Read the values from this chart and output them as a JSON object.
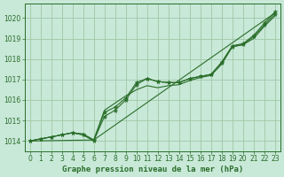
{
  "title": "Graphe pression niveau de la mer (hPa)",
  "background_color": "#c8e8d8",
  "grid_color": "#a0c8a8",
  "line_color": "#2a6e2a",
  "xlim": [
    -0.5,
    23.5
  ],
  "ylim": [
    1013.5,
    1020.7
  ],
  "yticks": [
    1014,
    1015,
    1016,
    1017,
    1018,
    1019,
    1020
  ],
  "xticks": [
    0,
    1,
    2,
    3,
    4,
    5,
    6,
    7,
    8,
    9,
    10,
    11,
    12,
    13,
    14,
    15,
    16,
    17,
    18,
    19,
    20,
    21,
    22,
    23
  ],
  "series": [
    {
      "x": [
        0,
        1,
        2,
        3,
        4,
        5,
        6,
        7,
        8,
        9,
        10,
        11,
        12,
        13,
        14,
        15,
        16,
        17,
        18,
        19,
        20,
        21,
        22,
        23
      ],
      "y": [
        1014.0,
        1014.1,
        1014.2,
        1014.3,
        1014.4,
        1014.3,
        1014.05,
        1015.4,
        1015.65,
        1016.1,
        1016.85,
        1017.05,
        1016.9,
        1016.85,
        1016.85,
        1017.05,
        1017.15,
        1017.25,
        1017.85,
        1018.65,
        1018.75,
        1019.15,
        1019.75,
        1020.3
      ],
      "marker": true
    },
    {
      "x": [
        0,
        1,
        2,
        3,
        4,
        5,
        6,
        7,
        8,
        9,
        10,
        11,
        12,
        13,
        14,
        15,
        16,
        17,
        18,
        19,
        20,
        21,
        22,
        23
      ],
      "y": [
        1014.0,
        1014.1,
        1014.2,
        1014.3,
        1014.4,
        1014.3,
        1014.0,
        1015.2,
        1015.5,
        1016.0,
        1016.75,
        1017.05,
        1016.9,
        1016.85,
        1016.85,
        1017.05,
        1017.15,
        1017.25,
        1017.8,
        1018.6,
        1018.7,
        1019.1,
        1019.65,
        1020.2
      ],
      "marker": true
    },
    {
      "x": [
        0,
        6,
        7,
        8,
        9,
        10,
        11,
        12,
        13,
        14,
        15,
        16,
        17,
        18,
        19,
        20,
        21,
        22,
        23
      ],
      "y": [
        1014.0,
        1014.05,
        1015.5,
        1015.85,
        1016.2,
        1016.5,
        1016.7,
        1016.6,
        1016.7,
        1016.75,
        1016.95,
        1017.1,
        1017.2,
        1017.75,
        1018.6,
        1018.7,
        1019.0,
        1019.6,
        1020.1
      ],
      "marker": false
    },
    {
      "x": [
        0,
        1,
        2,
        3,
        4,
        5,
        6,
        23
      ],
      "y": [
        1014.0,
        1014.1,
        1014.2,
        1014.3,
        1014.4,
        1014.35,
        1014.05,
        1020.25
      ],
      "marker": false
    }
  ],
  "tick_fontsize": 5.5,
  "xlabel_fontsize": 6.5
}
